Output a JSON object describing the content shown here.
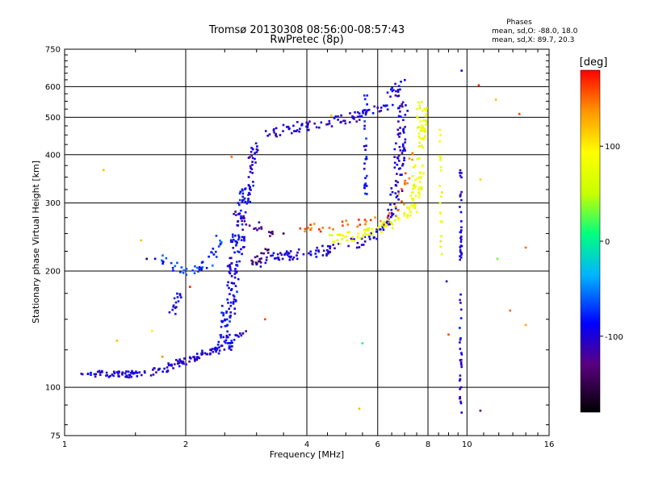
{
  "chart_data": {
    "type": "scatter",
    "title": "Tromsø 20130308 08:56:00-08:57:43",
    "subtitle": "RwPretec (8p)",
    "xlabel": "Frequency [MHz]",
    "ylabel": "Stationary phase Virtual Height [km]",
    "x_scale": "log",
    "y_scale": "log",
    "xlim": [
      1,
      16
    ],
    "ylim": [
      75,
      750
    ],
    "x_ticks": [
      1,
      2,
      4,
      6,
      8,
      10,
      16
    ],
    "y_ticks": [
      75,
      100,
      200,
      300,
      400,
      500,
      600,
      750
    ],
    "grid": true,
    "legend": {
      "title": "Phases",
      "lines": [
        "mean, sd,O: -88.0, 18.0",
        "mean, sd,X:  89.7, 20.3"
      ],
      "placement": "top-right"
    },
    "colorbar": {
      "label": "[deg]",
      "ticks": [
        100,
        0,
        -100
      ],
      "range": [
        -180,
        180
      ],
      "colors": [
        "#000000",
        "#5a0080",
        "#0000ff",
        "#00b4ff",
        "#00ff80",
        "#c8ff00",
        "#ffff00",
        "#ff9600",
        "#ff0000"
      ]
    },
    "traces": [
      {
        "segments": [
          [
            [
              1.1,
              109
            ],
            [
              1.25,
              108
            ],
            [
              1.5,
              108
            ],
            [
              1.7,
              110
            ],
            [
              1.9,
              115
            ],
            [
              2.1,
              119
            ],
            [
              2.35,
              125
            ],
            [
              2.55,
              132
            ],
            [
              2.8,
              138
            ]
          ]
        ],
        "phase": -100,
        "count": 150,
        "spread": 0.02
      },
      {
        "segments": [
          [
            [
              2.5,
              125
            ],
            [
              2.55,
              150
            ],
            [
              2.6,
              180
            ],
            [
              2.65,
              210
            ],
            [
              2.7,
              240
            ],
            [
              2.75,
              270
            ],
            [
              2.8,
              300
            ],
            [
              2.85,
              340
            ]
          ]
        ],
        "phase": -90,
        "count": 170,
        "spread": 0.04
      },
      {
        "segments": [
          [
            [
              2.85,
              340
            ],
            [
              2.92,
              390
            ],
            [
              3.0,
              430
            ],
            [
              3.2,
              450
            ],
            [
              3.5,
              465
            ],
            [
              3.8,
              470
            ],
            [
              4.2,
              480
            ],
            [
              4.8,
              490
            ],
            [
              5.5,
              505
            ],
            [
              6.0,
              520
            ],
            [
              6.3,
              540
            ],
            [
              6.6,
              580
            ],
            [
              6.9,
              620
            ]
          ]
        ],
        "phase": -100,
        "count": 130,
        "spread": 0.03
      },
      {
        "segments": [
          [
            [
              3.0,
              205
            ],
            [
              3.3,
              215
            ],
            [
              3.6,
              220
            ],
            [
              4.0,
              222
            ],
            [
              4.5,
              226
            ],
            [
              5.0,
              232
            ],
            [
              5.5,
              240
            ],
            [
              6.0,
              252
            ],
            [
              6.3,
              265
            ],
            [
              6.5,
              285
            ],
            [
              6.7,
              330
            ],
            [
              6.8,
              400
            ],
            [
              6.9,
              480
            ],
            [
              6.95,
              550
            ]
          ]
        ],
        "phase": -100,
        "count": 180,
        "spread": 0.03
      },
      {
        "segments": [
          [
            [
              4.6,
              240
            ],
            [
              5.0,
              245
            ],
            [
              5.5,
              250
            ],
            [
              6.0,
              258
            ],
            [
              6.5,
              268
            ],
            [
              7.0,
              278
            ],
            [
              7.3,
              290
            ],
            [
              7.5,
              320
            ],
            [
              7.6,
              380
            ],
            [
              7.7,
              450
            ],
            [
              7.75,
              550
            ]
          ]
        ],
        "phase": 80,
        "count": 160,
        "spread": 0.03
      },
      {
        "segments": [
          [
            [
              3.8,
              255
            ],
            [
              4.2,
              258
            ],
            [
              4.7,
              262
            ],
            [
              5.2,
              265
            ],
            [
              5.7,
              270
            ],
            [
              6.2,
              278
            ],
            [
              6.6,
              290
            ],
            [
              6.9,
              310
            ],
            [
              7.1,
              360
            ],
            [
              7.2,
              420
            ]
          ]
        ],
        "phase": 150,
        "count": 45,
        "spread": 0.03
      },
      {
        "segments": [
          [
            [
              1.7,
              220
            ],
            [
              1.85,
              205
            ],
            [
              2.0,
              200
            ],
            [
              2.15,
              200
            ],
            [
              2.3,
              215
            ],
            [
              2.45,
              240
            ]
          ]
        ],
        "phase": -75,
        "count": 45,
        "spread": 0.03
      },
      {
        "segments": [
          [
            [
              1.85,
              155
            ],
            [
              1.9,
              165
            ],
            [
              1.95,
              175
            ]
          ]
        ],
        "phase": -95,
        "count": 15,
        "spread": 0.02
      },
      {
        "segments": [
          [
            [
              2.65,
              280
            ],
            [
              2.9,
              265
            ],
            [
              3.1,
              255
            ],
            [
              3.3,
              250
            ]
          ]
        ],
        "phase": -130,
        "count": 22,
        "spread": 0.03
      },
      {
        "segments": [
          [
            [
              2.9,
              210
            ],
            [
              3.1,
              220
            ],
            [
              3.3,
              228
            ]
          ]
        ],
        "phase": -140,
        "count": 18,
        "spread": 0.02
      },
      {
        "segments": [
          [
            [
              5.6,
              305
            ],
            [
              5.6,
              580
            ]
          ]
        ],
        "phase": -85,
        "count": 30,
        "spread": 0.01
      },
      {
        "segments": [
          [
            [
              9.65,
              90
            ],
            [
              9.65,
              400
            ]
          ]
        ],
        "phase": -100,
        "count": 60,
        "spread": 0.006
      },
      {
        "segments": [
          [
            [
              8.6,
              470
            ],
            [
              8.6,
              220
            ]
          ]
        ],
        "phase": 90,
        "count": 20,
        "spread": 0.008
      }
    ],
    "scatter_points": [
      {
        "x": 1.25,
        "y": 365,
        "phase": 120
      },
      {
        "x": 1.35,
        "y": 132,
        "phase": 120
      },
      {
        "x": 1.55,
        "y": 240,
        "phase": 120
      },
      {
        "x": 1.6,
        "y": 215,
        "phase": -150
      },
      {
        "x": 1.65,
        "y": 140,
        "phase": 100
      },
      {
        "x": 1.75,
        "y": 120,
        "phase": 140
      },
      {
        "x": 2.05,
        "y": 182,
        "phase": 170
      },
      {
        "x": 2.6,
        "y": 395,
        "phase": 150
      },
      {
        "x": 3.15,
        "y": 150,
        "phase": 160
      },
      {
        "x": 3.5,
        "y": 250,
        "phase": -160
      },
      {
        "x": 4.6,
        "y": 505,
        "phase": 120
      },
      {
        "x": 5.4,
        "y": 88,
        "phase": 120
      },
      {
        "x": 5.5,
        "y": 130,
        "phase": 10
      },
      {
        "x": 8.9,
        "y": 188,
        "phase": -110
      },
      {
        "x": 9.0,
        "y": 137,
        "phase": 160
      },
      {
        "x": 9.7,
        "y": 660,
        "phase": -100
      },
      {
        "x": 9.7,
        "y": 86,
        "phase": -100
      },
      {
        "x": 10.7,
        "y": 605,
        "phase": 170
      },
      {
        "x": 10.8,
        "y": 345,
        "phase": 110
      },
      {
        "x": 10.8,
        "y": 87,
        "phase": -130
      },
      {
        "x": 11.8,
        "y": 555,
        "phase": 120
      },
      {
        "x": 11.9,
        "y": 215,
        "phase": 30
      },
      {
        "x": 12.8,
        "y": 158,
        "phase": 150
      },
      {
        "x": 13.5,
        "y": 510,
        "phase": 160
      },
      {
        "x": 14.0,
        "y": 230,
        "phase": 150
      },
      {
        "x": 14.0,
        "y": 145,
        "phase": 130
      }
    ]
  }
}
